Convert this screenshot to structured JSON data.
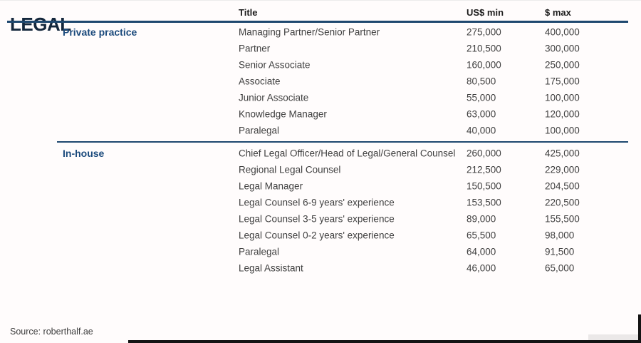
{
  "page": {
    "title": "LEGAL",
    "source": "Source: roberthalf.ae"
  },
  "table": {
    "columns": [
      "Title",
      "US$ min",
      "$ max"
    ],
    "sections": [
      {
        "category": "Private practice",
        "rows": [
          {
            "title": "Managing Partner/Senior Partner",
            "min": "275,000",
            "max": "400,000"
          },
          {
            "title": "Partner",
            "min": "210,500",
            "max": "300,000"
          },
          {
            "title": "Senior Associate",
            "min": "160,000",
            "max": "250,000"
          },
          {
            "title": "Associate",
            "min": "80,500",
            "max": "175,000"
          },
          {
            "title": "Junior Associate",
            "min": "55,000",
            "max": "100,000"
          },
          {
            "title": "Knowledge Manager",
            "min": "63,000",
            "max": "120,000"
          },
          {
            "title": "Paralegal",
            "min": "40,000",
            "max": "100,000"
          }
        ]
      },
      {
        "category": "In-house",
        "rows": [
          {
            "title": "Chief Legal Officer/Head of Legal/General Counsel",
            "min": "260,000",
            "max": "425,000"
          },
          {
            "title": "Regional Legal Counsel",
            "min": "212,500",
            "max": "229,000"
          },
          {
            "title": "Legal Manager",
            "min": "150,500",
            "max": "204,500"
          },
          {
            "title": "Legal Counsel 6-9 years' experience",
            "min": "153,500",
            "max": "220,500"
          },
          {
            "title": "Legal Counsel 3-5 years' experience",
            "min": "89,000",
            "max": "155,500"
          },
          {
            "title": "Legal Counsel 0-2 years' experience",
            "min": "65,500",
            "max": "98,000"
          },
          {
            "title": "Paralegal",
            "min": "64,000",
            "max": "91,500"
          },
          {
            "title": "Legal Assistant",
            "min": "46,000",
            "max": "65,000"
          }
        ]
      }
    ]
  },
  "colors": {
    "heading_navy": "#14273c",
    "rule_navy": "#1e486f",
    "category_navy": "#1b4a7c",
    "row_text": "#3f3f3f",
    "background": "#fffcfc"
  }
}
